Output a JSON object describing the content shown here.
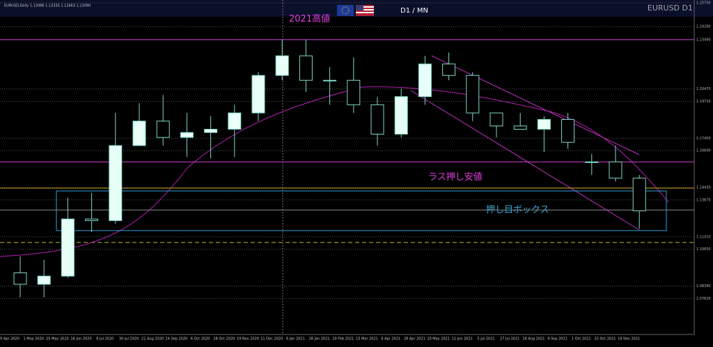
{
  "chart_data": {
    "type": "candlestick",
    "header": "EURUSD,Daily  1.13086 1.13335 1.12663 1.13090",
    "title": "D1 / MN",
    "symbol_label": "EURUSD D1",
    "categories": [
      "9 Apr 2020",
      "1 May 2020",
      "25 May 2020",
      "16 Jun 2020",
      "8 Jul 2020",
      "30 Jul 2020",
      "21 Aug 2020",
      "14 Sep 2020",
      "6 Oct 2020",
      "28 Oct 2020",
      "19 Nov 2020",
      "11 Dec 2020",
      "6 Jan 2021",
      "28 Jan 2021",
      "19 Feb 2021",
      "15 Mar 2021",
      "6 Apr 2021",
      "28 Apr 2021",
      "20 May 2021",
      "11 Jun 2021",
      "5 Jul 2021",
      "27 Jul 2021",
      "18 Aug 2021",
      "9 Sep 2021",
      "1 Oct 2021",
      "25 Oct 2021",
      "16 Nov 2021"
    ],
    "open": [
      1.092,
      1.085,
      1.09,
      1.125,
      1.124,
      1.17,
      1.185,
      1.175,
      1.178,
      1.18,
      1.19,
      1.213,
      1.225,
      1.21,
      1.21,
      1.195,
      1.177,
      1.2,
      1.22,
      1.213,
      1.19,
      1.182,
      1.18,
      1.186,
      1.16,
      1.16,
      1.15
    ],
    "high": [
      1.102,
      1.1,
      1.138,
      1.141,
      1.19,
      1.196,
      1.201,
      1.19,
      1.188,
      1.195,
      1.215,
      1.235,
      1.235,
      1.218,
      1.224,
      1.2,
      1.205,
      1.225,
      1.227,
      1.215,
      1.19,
      1.19,
      1.188,
      1.19,
      1.165,
      1.17,
      1.152
    ],
    "low": [
      1.077,
      1.077,
      1.089,
      1.117,
      1.122,
      1.17,
      1.17,
      1.163,
      1.162,
      1.163,
      1.185,
      1.21,
      1.203,
      1.195,
      1.19,
      1.17,
      1.175,
      1.195,
      1.21,
      1.185,
      1.175,
      1.18,
      1.166,
      1.168,
      1.152,
      1.148,
      1.119
    ],
    "close": [
      1.085,
      1.09,
      1.125,
      1.124,
      1.17,
      1.185,
      1.175,
      1.178,
      1.18,
      1.19,
      1.213,
      1.225,
      1.21,
      1.21,
      1.195,
      1.177,
      1.2,
      1.22,
      1.213,
      1.19,
      1.182,
      1.18,
      1.186,
      1.172,
      1.16,
      1.15,
      1.13
    ],
    "up_color": "#e8fff8",
    "down_color": "#000000",
    "wick_color": "#7fd8c8",
    "ylim": [
      1.0551,
      1.2575
    ],
    "yticks": [
      {
        "value": 1.2575,
        "label": "1.25750"
      },
      {
        "value": 1.2429,
        "label": "1.24290"
      },
      {
        "value": 1.2349,
        "label": "1.23490"
      },
      {
        "value": 1.2047,
        "label": "1.20470"
      },
      {
        "value": 1.1971,
        "label": "1.19710"
      },
      {
        "value": 1.1745,
        "label": "1.17450"
      },
      {
        "value": 1.1669,
        "label": "1.16690"
      },
      {
        "value": 1.1443,
        "label": "1.14430"
      },
      {
        "value": 1.1367,
        "label": "1.13670"
      },
      {
        "value": 1.1141,
        "label": "1.11410"
      },
      {
        "value": 1.1065,
        "label": "1.10650"
      },
      {
        "value": 1.0839,
        "label": "1.08390"
      },
      {
        "value": 1.0763,
        "label": "1.07630"
      }
    ],
    "grid": true,
    "levels": [
      {
        "value": 1.2349,
        "color": "#d040d0"
      },
      {
        "value": 1.16,
        "color": "#d040d0"
      },
      {
        "value": 1.1439,
        "color": "#c8a020"
      },
      {
        "value": 1.1305,
        "color": "#888888"
      }
    ],
    "zone": [
      1.1179,
      1.1422
    ],
    "annotations": [
      {
        "text": "2021高値",
        "price": 1.2475,
        "color": "#e040e0"
      },
      {
        "text": "ラス押し安値",
        "price": 1.1505,
        "color": "#e040e0"
      },
      {
        "text": "押し目ボックス",
        "price": 1.1305,
        "color": "#40a8d0"
      }
    ]
  }
}
